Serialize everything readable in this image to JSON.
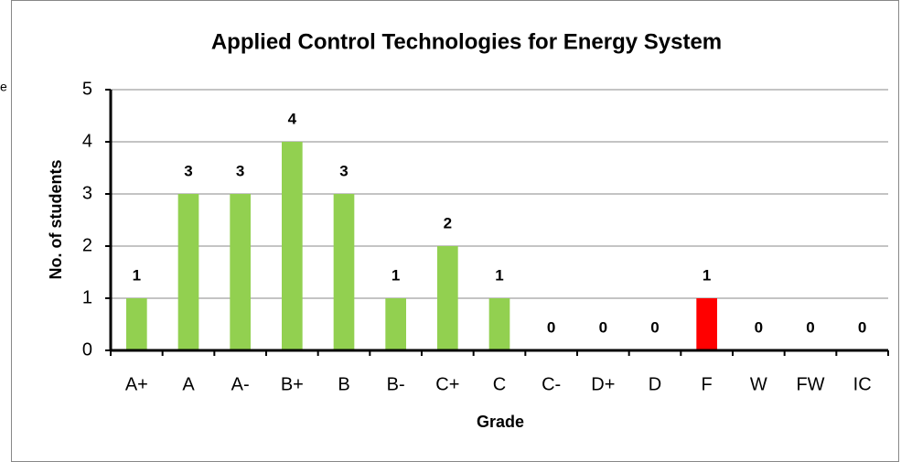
{
  "side_text": "e",
  "chart_data": {
    "type": "bar",
    "title": "Applied Control Technologies for Energy System",
    "x_label": "Grade",
    "y_label": "No. of students",
    "categories": [
      "A+",
      "A",
      "A-",
      "B+",
      "B",
      "B-",
      "C+",
      "C",
      "C-",
      "D+",
      "D",
      "F",
      "W",
      "FW",
      "IC"
    ],
    "values": [
      1,
      3,
      3,
      4,
      3,
      1,
      2,
      1,
      0,
      0,
      0,
      1,
      0,
      0,
      0
    ],
    "colors": [
      "#92d050",
      "#92d050",
      "#92d050",
      "#92d050",
      "#92d050",
      "#92d050",
      "#92d050",
      "#92d050",
      "#92d050",
      "#92d050",
      "#92d050",
      "#ff0000",
      "#92d050",
      "#92d050",
      "#92d050"
    ],
    "ylim": [
      0,
      5
    ],
    "yticks": [
      0,
      1,
      2,
      3,
      4,
      5
    ],
    "grid": true,
    "data_labels": true
  }
}
